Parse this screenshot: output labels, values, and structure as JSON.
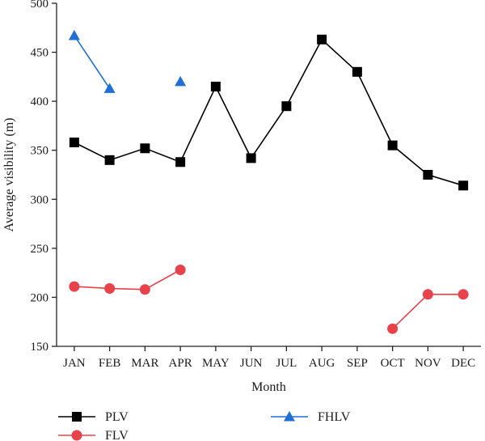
{
  "chart_data": {
    "type": "line",
    "categories": [
      "JAN",
      "FEB",
      "MAR",
      "APR",
      "MAY",
      "JUN",
      "JUL",
      "AUG",
      "SEP",
      "OCT",
      "NOV",
      "DEC"
    ],
    "xlabel": "Month",
    "ylabel": "Average visibility (m)",
    "ylim": [
      150,
      500
    ],
    "yticks": [
      150,
      200,
      250,
      300,
      350,
      400,
      450,
      500
    ],
    "grid": false,
    "legend_position": "bottom",
    "series": [
      {
        "name": "PLV",
        "color": "#000000",
        "marker": "square",
        "values": [
          358,
          340,
          352,
          338,
          415,
          342,
          395,
          463,
          430,
          355,
          325,
          314
        ]
      },
      {
        "name": "FLV",
        "color": "#e8434b",
        "marker": "circle",
        "values": [
          211,
          209,
          208,
          228,
          null,
          null,
          null,
          null,
          null,
          168,
          203,
          203
        ]
      },
      {
        "name": "FHLV",
        "color": "#1f6fd6",
        "marker": "triangle",
        "values": [
          467,
          413,
          null,
          420,
          null,
          null,
          null,
          null,
          null,
          null,
          null,
          null
        ]
      }
    ]
  }
}
